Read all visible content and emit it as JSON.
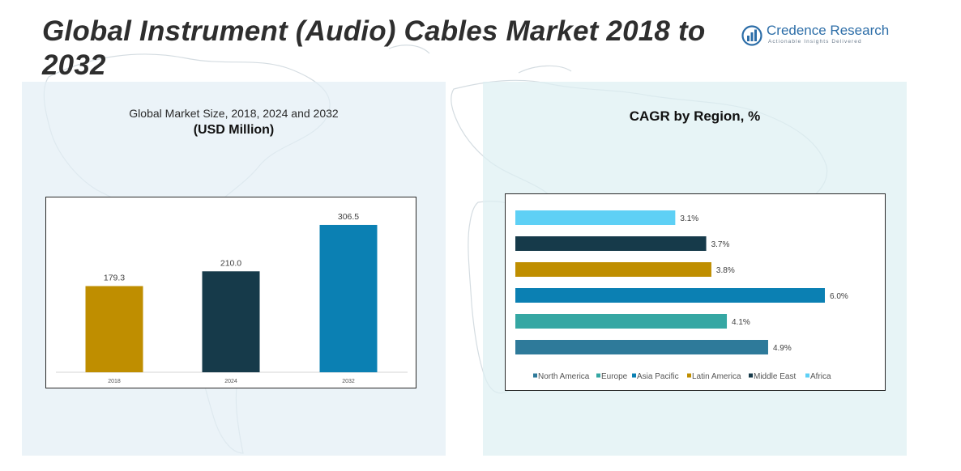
{
  "title": "Global Instrument (Audio) Cables Market 2018 to 2032",
  "logo": {
    "icon": "bar-chart-logo-icon",
    "name": "Credence Research",
    "tagline": "Actionable Insights Delivered"
  },
  "left_panel": {
    "title_line1": "Global Market Size, 2018, 2024 and 2032",
    "title_line2": "(USD Million)"
  },
  "right_panel": {
    "title": "CAGR by Region, %"
  },
  "chart_data": [
    {
      "type": "bar",
      "title": "Global Market Size, 2018, 2024 and 2032 (USD Million)",
      "categories": [
        "2018",
        "2024",
        "2032"
      ],
      "values": [
        179.3,
        210.0,
        306.5
      ],
      "data_labels": [
        "179.3",
        "210.0",
        "306.5"
      ],
      "colors": [
        "#bf8e00",
        "#163a4a",
        "#0b80b3"
      ],
      "xlabel": "",
      "ylabel": "",
      "ylim": [
        0,
        330
      ],
      "grid": false,
      "legend": "none"
    },
    {
      "type": "bar",
      "orientation": "horizontal",
      "title": "CAGR by Region, %",
      "categories": [
        "North America",
        "Europe",
        "Asia Pacific",
        "Latin America",
        "Middle East",
        "Africa"
      ],
      "values": [
        4.9,
        4.1,
        6.0,
        3.8,
        3.7,
        3.1
      ],
      "data_labels": [
        "4.9%",
        "4.1%",
        "6.0%",
        "3.8%",
        "3.7%",
        "3.1%"
      ],
      "colors": [
        "#2e7a9a",
        "#35a7a3",
        "#0b80b3",
        "#bf8e00",
        "#163a4a",
        "#5ed0f5"
      ],
      "xlim": [
        0,
        6.0
      ],
      "grid": false,
      "legend": "bottom"
    }
  ]
}
